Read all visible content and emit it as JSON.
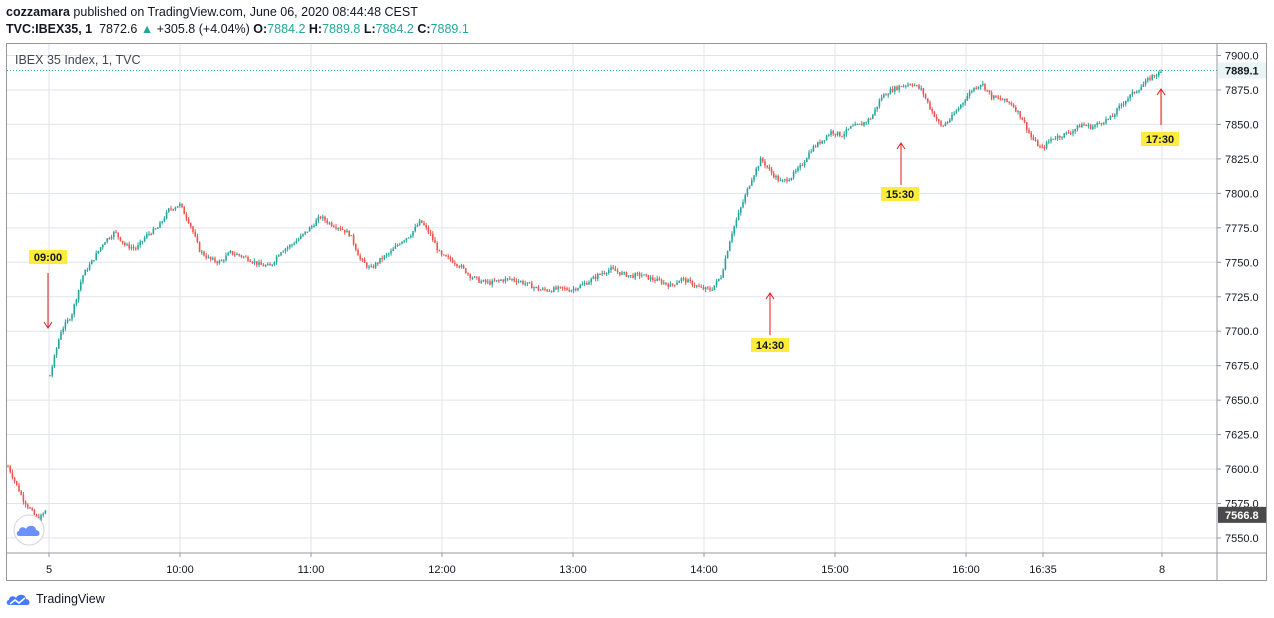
{
  "header": {
    "publisher": "cozzamara",
    "published_text": "published on TradingView.com, June 06, 2020 08:44:48 CEST",
    "symbol": "TVC:IBEX35, 1",
    "last": "7872.6",
    "change": "+305.8 (+4.04%)",
    "o_label": "O:",
    "o_value": "7884.2",
    "h_label": "H:",
    "h_value": "7889.8",
    "l_label": "L:",
    "l_value": "7884.2",
    "c_label": "C:",
    "c_value": "7889.1"
  },
  "legend": "IBEX 35 Index, 1, TVC",
  "footer_logo": "TradingView",
  "colors": {
    "up": "#26a69a",
    "down": "#ef5350",
    "grid": "#e0e3eb",
    "annotation_bg": "#ffeb3b",
    "arrow": "#e31b1b"
  },
  "chart_data": {
    "type": "candlestick",
    "title": "IBEX 35 Index, 1, TVC",
    "y_axis": {
      "ylim": [
        7537,
        7910
      ],
      "ticks": [
        7550,
        7575,
        7600,
        7625,
        7650,
        7675,
        7700,
        7725,
        7750,
        7775,
        7800,
        7825,
        7850,
        7875,
        7900
      ],
      "tick_labels": [
        "7550.0",
        "7575.0",
        "7600.0",
        "7625.0",
        "7650.0",
        "7675.0",
        "7700.0",
        "7725.0",
        "7750.0",
        "7775.0",
        "7800.0",
        "7825.0",
        "7850.0",
        "7875.0",
        "7900.0"
      ],
      "position": "right"
    },
    "x_axis": {
      "tick_labels": [
        "5",
        "10:00",
        "11:00",
        "12:00",
        "13:00",
        "14:00",
        "15:00",
        "16:00",
        "16:35",
        "8"
      ]
    },
    "price_labels": [
      {
        "value": 7889.1,
        "text": "7889.1",
        "style": "current"
      },
      {
        "value": 7566.8,
        "text": "7566.8",
        "style": "previous-close"
      }
    ],
    "annotations": [
      {
        "label": "09:00",
        "direction": "down",
        "value": 7700
      },
      {
        "label": "14:30",
        "direction": "up",
        "value": 7730
      },
      {
        "label": "15:30",
        "direction": "up",
        "value": 7838
      },
      {
        "label": "17:30",
        "direction": "up",
        "value": 7876
      }
    ],
    "path_points": [
      [
        0,
        7602
      ],
      [
        1,
        7590
      ],
      [
        2,
        7578
      ],
      [
        3,
        7570
      ],
      [
        4,
        7563
      ],
      [
        5,
        7570
      ],
      [
        6,
        7668
      ],
      [
        7,
        7700
      ],
      [
        8,
        7712
      ],
      [
        9,
        7740
      ],
      [
        10,
        7752
      ],
      [
        11,
        7765
      ],
      [
        12,
        7772
      ],
      [
        13,
        7762
      ],
      [
        14,
        7760
      ],
      [
        15,
        7770
      ],
      [
        16,
        7775
      ],
      [
        17,
        7788
      ],
      [
        18,
        7792
      ],
      [
        19,
        7778
      ],
      [
        20,
        7758
      ],
      [
        21,
        7752
      ],
      [
        22,
        7750
      ],
      [
        23,
        7757
      ],
      [
        24,
        7755
      ],
      [
        25,
        7752
      ],
      [
        26,
        7748
      ],
      [
        27,
        7747
      ],
      [
        28,
        7758
      ],
      [
        29,
        7762
      ],
      [
        30,
        7768
      ],
      [
        31,
        7775
      ],
      [
        32,
        7783
      ],
      [
        33,
        7778
      ],
      [
        34,
        7775
      ],
      [
        35,
        7770
      ],
      [
        36,
        7752
      ],
      [
        37,
        7745
      ],
      [
        38,
        7752
      ],
      [
        39,
        7757
      ],
      [
        40,
        7765
      ],
      [
        41,
        7770
      ],
      [
        42,
        7780
      ],
      [
        43,
        7770
      ],
      [
        44,
        7755
      ],
      [
        45,
        7752
      ],
      [
        46,
        7747
      ],
      [
        47,
        7740
      ],
      [
        48,
        7736
      ],
      [
        49,
        7735
      ],
      [
        50,
        7737
      ],
      [
        51,
        7738
      ],
      [
        52,
        7736
      ],
      [
        53,
        7733
      ],
      [
        54,
        7730
      ],
      [
        55,
        7730
      ],
      [
        56,
        7731
      ],
      [
        57,
        7730
      ],
      [
        58,
        7733
      ],
      [
        59,
        7737
      ],
      [
        60,
        7742
      ],
      [
        61,
        7745
      ],
      [
        62,
        7742
      ],
      [
        63,
        7740
      ],
      [
        64,
        7741
      ],
      [
        65,
        7738
      ],
      [
        66,
        7736
      ],
      [
        67,
        7733
      ],
      [
        68,
        7738
      ],
      [
        69,
        7735
      ],
      [
        70,
        7731
      ],
      [
        71,
        7730
      ],
      [
        72,
        7740
      ],
      [
        73,
        7770
      ],
      [
        74,
        7790
      ],
      [
        75,
        7810
      ],
      [
        76,
        7825
      ],
      [
        77,
        7815
      ],
      [
        78,
        7808
      ],
      [
        79,
        7812
      ],
      [
        80,
        7820
      ],
      [
        81,
        7832
      ],
      [
        82,
        7838
      ],
      [
        83,
        7845
      ],
      [
        84,
        7842
      ],
      [
        85,
        7848
      ],
      [
        86,
        7850
      ],
      [
        87,
        7855
      ],
      [
        88,
        7870
      ],
      [
        89,
        7875
      ],
      [
        90,
        7878
      ],
      [
        91,
        7880
      ],
      [
        92,
        7875
      ],
      [
        93,
        7860
      ],
      [
        94,
        7848
      ],
      [
        95,
        7855
      ],
      [
        96,
        7865
      ],
      [
        97,
        7875
      ],
      [
        98,
        7880
      ],
      [
        99,
        7870
      ],
      [
        100,
        7868
      ],
      [
        101,
        7865
      ],
      [
        102,
        7855
      ],
      [
        103,
        7840
      ],
      [
        104,
        7832
      ],
      [
        105,
        7840
      ],
      [
        106,
        7842
      ],
      [
        107,
        7845
      ],
      [
        108,
        7850
      ],
      [
        109,
        7848
      ],
      [
        110,
        7852
      ],
      [
        111,
        7855
      ],
      [
        112,
        7865
      ],
      [
        113,
        7872
      ],
      [
        114,
        7878
      ],
      [
        115,
        7885
      ],
      [
        116,
        7888
      ]
    ]
  }
}
